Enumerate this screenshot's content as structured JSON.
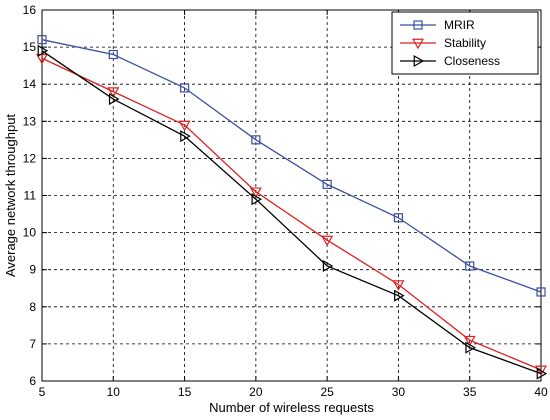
{
  "chart_data": {
    "type": "line",
    "x": [
      5,
      10,
      15,
      20,
      25,
      30,
      35,
      40
    ],
    "xlabel": "Number of wireless requests",
    "ylabel": "Average network throughput",
    "xlim": [
      5,
      40
    ],
    "ylim": [
      6,
      16
    ],
    "xticks": [
      "5",
      "10",
      "15",
      "20",
      "25",
      "30",
      "35",
      "40"
    ],
    "yticks": [
      "6",
      "7",
      "8",
      "9",
      "10",
      "11",
      "12",
      "13",
      "14",
      "15",
      "16"
    ],
    "grid": true,
    "legend_position": "top-right",
    "series": [
      {
        "name": "MRIR",
        "values": [
          15.2,
          14.8,
          13.9,
          12.5,
          11.3,
          10.4,
          9.1,
          8.4
        ],
        "color": "#3a4fa0",
        "marker": "square"
      },
      {
        "name": "Stability",
        "values": [
          14.7,
          13.8,
          12.9,
          11.1,
          9.8,
          8.6,
          7.1,
          6.3
        ],
        "color": "#e02020",
        "marker": "triangle-down"
      },
      {
        "name": "Closeness",
        "values": [
          14.9,
          13.6,
          12.6,
          10.9,
          9.1,
          8.3,
          6.9,
          6.2
        ],
        "color": "#000000",
        "marker": "triangle-right"
      }
    ]
  }
}
